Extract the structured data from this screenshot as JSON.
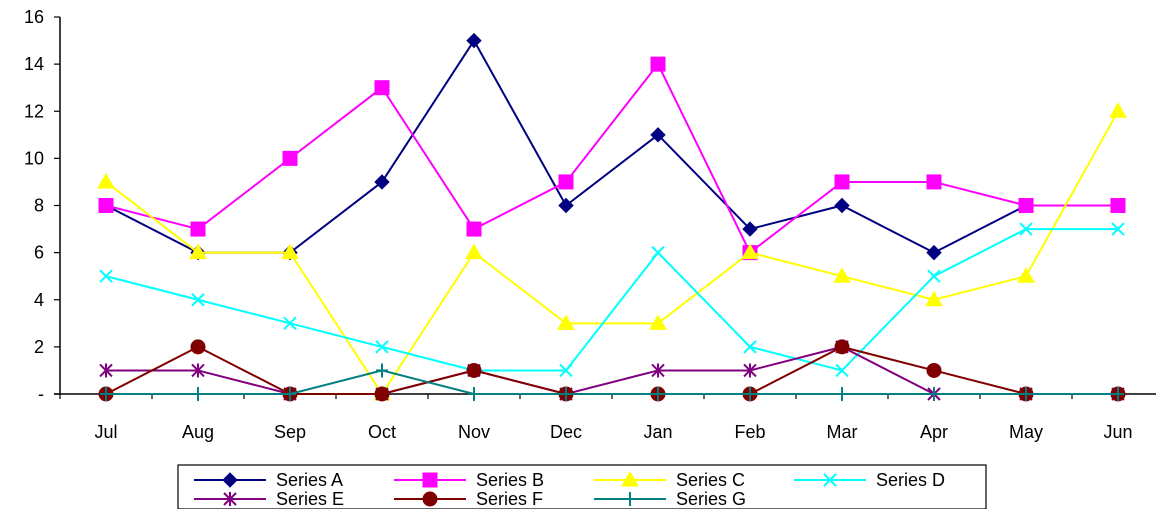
{
  "chart_data": {
    "type": "line",
    "title": "",
    "xlabel": "",
    "ylabel": "",
    "categories": [
      "Jul",
      "Aug",
      "Sep",
      "Oct",
      "Nov",
      "Dec",
      "Jan",
      "Feb",
      "Mar",
      "Apr",
      "May",
      "Jun"
    ],
    "y_tick_labels": [
      "-",
      "2",
      "4",
      "6",
      "8",
      "10",
      "12",
      "14",
      "16"
    ],
    "ylim": [
      0,
      16
    ],
    "grid": false,
    "legend_position": "bottom",
    "series": [
      {
        "name": "Series A",
        "color": "#000080",
        "marker": "diamond",
        "values": [
          8,
          6,
          6,
          9,
          15,
          8,
          11,
          7,
          8,
          6,
          8,
          8
        ]
      },
      {
        "name": "Series B",
        "color": "#ff00ff",
        "marker": "square",
        "values": [
          8,
          7,
          10,
          13,
          7,
          9,
          14,
          6,
          9,
          9,
          8,
          8
        ]
      },
      {
        "name": "Series C",
        "color": "#ffff00",
        "marker": "triangle",
        "values": [
          9,
          6,
          6,
          0,
          6,
          3,
          3,
          6,
          5,
          4,
          5,
          12
        ]
      },
      {
        "name": "Series D",
        "color": "#00ffff",
        "marker": "x",
        "values": [
          5,
          4,
          3,
          2,
          1,
          1,
          6,
          2,
          1,
          5,
          7,
          7
        ]
      },
      {
        "name": "Series E",
        "color": "#800080",
        "marker": "star",
        "values": [
          1,
          1,
          0,
          0,
          1,
          0,
          1,
          1,
          2,
          0,
          0,
          0
        ]
      },
      {
        "name": "Series F",
        "color": "#800000",
        "marker": "circle",
        "values": [
          0,
          2,
          0,
          0,
          1,
          0,
          0,
          0,
          2,
          1,
          0,
          0
        ]
      },
      {
        "name": "Series G",
        "color": "#008080",
        "marker": "plus",
        "values": [
          0,
          0,
          0,
          1,
          0,
          0,
          0,
          0,
          0,
          0,
          0,
          0
        ]
      }
    ]
  }
}
